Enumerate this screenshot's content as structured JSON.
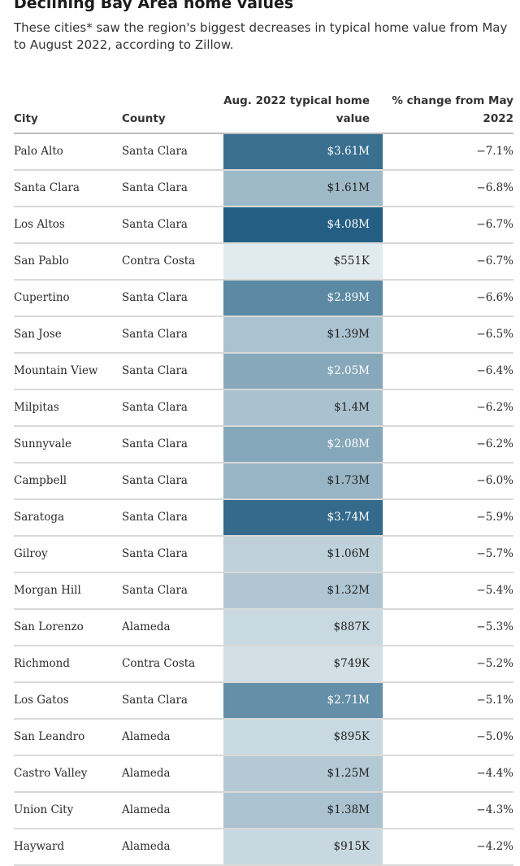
{
  "title": "Declining Bay Area home values",
  "subtitle": "These cities* saw the region's biggest decreases in typical home value from May to August 2022, according to Zillow.",
  "columns": {
    "city": "City",
    "county": "County",
    "value": "Aug. 2022 typical home value",
    "change": "% change from May 2022"
  },
  "colors": {
    "text_dark": "#222222",
    "text_light": "#ffffff",
    "scale_low": "#e6eff2",
    "scale_high": "#235e82",
    "divider": "#d9d9d9"
  },
  "chart_data": {
    "type": "table",
    "title": "Declining Bay Area home values",
    "columns": [
      "City",
      "County",
      "Aug. 2022 typical home value",
      "% change from May 2022"
    ],
    "rows": [
      {
        "city": "Palo Alto",
        "county": "Santa Clara",
        "value_label": "$3.61M",
        "value": 3610000,
        "change_label": "−7.1%",
        "change": -7.1
      },
      {
        "city": "Santa Clara",
        "county": "Santa Clara",
        "value_label": "$1.61M",
        "value": 1610000,
        "change_label": "−6.8%",
        "change": -6.8
      },
      {
        "city": "Los Altos",
        "county": "Santa Clara",
        "value_label": "$4.08M",
        "value": 4080000,
        "change_label": "−6.7%",
        "change": -6.7
      },
      {
        "city": "San Pablo",
        "county": "Contra Costa",
        "value_label": "$551K",
        "value": 551000,
        "change_label": "−6.7%",
        "change": -6.7
      },
      {
        "city": "Cupertino",
        "county": "Santa Clara",
        "value_label": "$2.89M",
        "value": 2890000,
        "change_label": "−6.6%",
        "change": -6.6
      },
      {
        "city": "San Jose",
        "county": "Santa Clara",
        "value_label": "$1.39M",
        "value": 1390000,
        "change_label": "−6.5%",
        "change": -6.5
      },
      {
        "city": "Mountain View",
        "county": "Santa Clara",
        "value_label": "$2.05M",
        "value": 2050000,
        "change_label": "−6.4%",
        "change": -6.4
      },
      {
        "city": "Milpitas",
        "county": "Santa Clara",
        "value_label": "$1.4M",
        "value": 1400000,
        "change_label": "−6.2%",
        "change": -6.2
      },
      {
        "city": "Sunnyvale",
        "county": "Santa Clara",
        "value_label": "$2.08M",
        "value": 2080000,
        "change_label": "−6.2%",
        "change": -6.2
      },
      {
        "city": "Campbell",
        "county": "Santa Clara",
        "value_label": "$1.73M",
        "value": 1730000,
        "change_label": "−6.0%",
        "change": -6.0
      },
      {
        "city": "Saratoga",
        "county": "Santa Clara",
        "value_label": "$3.74M",
        "value": 3740000,
        "change_label": "−5.9%",
        "change": -5.9
      },
      {
        "city": "Gilroy",
        "county": "Santa Clara",
        "value_label": "$1.06M",
        "value": 1060000,
        "change_label": "−5.7%",
        "change": -5.7
      },
      {
        "city": "Morgan Hill",
        "county": "Santa Clara",
        "value_label": "$1.32M",
        "value": 1320000,
        "change_label": "−5.4%",
        "change": -5.4
      },
      {
        "city": "San Lorenzo",
        "county": "Alameda",
        "value_label": "$887K",
        "value": 887000,
        "change_label": "−5.3%",
        "change": -5.3
      },
      {
        "city": "Richmond",
        "county": "Contra Costa",
        "value_label": "$749K",
        "value": 749000,
        "change_label": "−5.2%",
        "change": -5.2
      },
      {
        "city": "Los Gatos",
        "county": "Santa Clara",
        "value_label": "$2.71M",
        "value": 2710000,
        "change_label": "−5.1%",
        "change": -5.1
      },
      {
        "city": "San Leandro",
        "county": "Alameda",
        "value_label": "$895K",
        "value": 895000,
        "change_label": "−5.0%",
        "change": -5.0
      },
      {
        "city": "Castro Valley",
        "county": "Alameda",
        "value_label": "$1.25M",
        "value": 1250000,
        "change_label": "−4.4%",
        "change": -4.4
      },
      {
        "city": "Union City",
        "county": "Alameda",
        "value_label": "$1.38M",
        "value": 1380000,
        "change_label": "−4.3%",
        "change": -4.3
      },
      {
        "city": "Hayward",
        "county": "Alameda",
        "value_label": "$915K",
        "value": 915000,
        "change_label": "−4.2%",
        "change": -4.2
      }
    ]
  }
}
